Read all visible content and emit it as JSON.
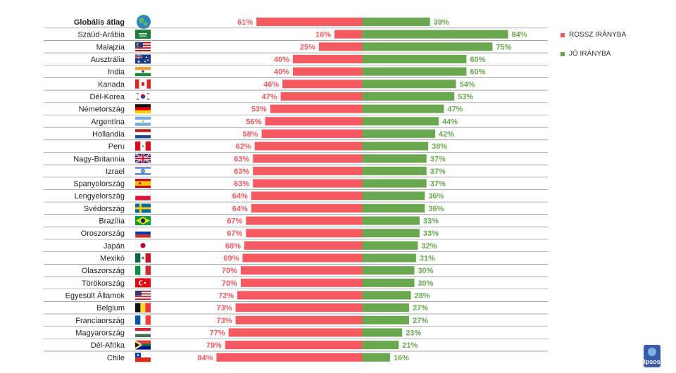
{
  "colors": {
    "negative": "#f45a5f",
    "positive": "#6aa84f",
    "separator": "#8a8a8a"
  },
  "legend": [
    {
      "label": "ROSSZ IRÁNYBA",
      "color": "#f45a5f"
    },
    {
      "label": "JÓ IRÁNYBA",
      "color": "#6aa84f"
    }
  ],
  "logo": {
    "text": "Ipsos"
  },
  "chart_data": {
    "type": "bar",
    "orientation": "horizontal-diverging",
    "title": "",
    "xlabel": "",
    "ylabel": "",
    "xlim": [
      -100,
      100
    ],
    "categories": [
      "Globális átlag",
      "Szaúd-Arábia",
      "Malajzia",
      "Ausztrália",
      "India",
      "Kanada",
      "Dél-Korea",
      "Németország",
      "Argentína",
      "Hollandia",
      "Peru",
      "Nagy-Britannia",
      "Izrael",
      "Spanyolország",
      "Lengyelország",
      "Svédország",
      "Brazília",
      "Oroszország",
      "Japán",
      "Mexikó",
      "Olaszország",
      "Törökország",
      "Egyesült Államok",
      "Belgium",
      "Franciaország",
      "Magyarország",
      "Dél-Afrika",
      "Chile"
    ],
    "flags": [
      "globe-icon",
      "saudi-arabia-flag-icon",
      "malaysia-flag-icon",
      "australia-flag-icon",
      "india-flag-icon",
      "canada-flag-icon",
      "south-korea-flag-icon",
      "germany-flag-icon",
      "argentina-flag-icon",
      "netherlands-flag-icon",
      "peru-flag-icon",
      "uk-flag-icon",
      "israel-flag-icon",
      "spain-flag-icon",
      "poland-flag-icon",
      "sweden-flag-icon",
      "brazil-flag-icon",
      "russia-flag-icon",
      "japan-flag-icon",
      "mexico-flag-icon",
      "italy-flag-icon",
      "turkey-flag-icon",
      "usa-flag-icon",
      "belgium-flag-icon",
      "france-flag-icon",
      "hungary-flag-icon",
      "south-africa-flag-icon",
      "chile-flag-icon"
    ],
    "series": [
      {
        "name": "ROSSZ IRÁNYBA",
        "values": [
          61,
          16,
          25,
          40,
          40,
          46,
          47,
          53,
          56,
          58,
          62,
          63,
          63,
          63,
          64,
          64,
          67,
          67,
          68,
          69,
          70,
          70,
          72,
          73,
          73,
          77,
          79,
          84
        ]
      },
      {
        "name": "JÓ IRÁNYBA",
        "values": [
          39,
          84,
          75,
          60,
          60,
          54,
          53,
          47,
          44,
          42,
          38,
          37,
          37,
          37,
          36,
          36,
          33,
          33,
          32,
          31,
          30,
          30,
          28,
          27,
          27,
          23,
          21,
          16
        ]
      }
    ],
    "value_suffix": "%",
    "legend_position": "right"
  }
}
